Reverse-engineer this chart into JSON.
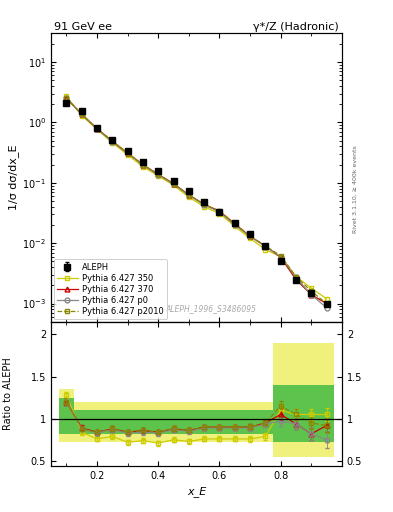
{
  "title_left": "91 GeV ee",
  "title_right": "γ*/Z (Hadronic)",
  "ylabel_main": "1/σ dσ/dx_E",
  "ylabel_ratio": "Ratio to ALEPH",
  "xlabel": "x_E",
  "watermark": "ALEPH_1996_S3486095",
  "right_label": "Rivet 3.1.10, ≥ 400k events",
  "xE": [
    0.1,
    0.15,
    0.2,
    0.25,
    0.3,
    0.35,
    0.4,
    0.45,
    0.5,
    0.55,
    0.6,
    0.65,
    0.7,
    0.75,
    0.8,
    0.85,
    0.9,
    0.95
  ],
  "aleph_y": [
    2.1,
    1.55,
    0.82,
    0.52,
    0.34,
    0.22,
    0.155,
    0.108,
    0.072,
    0.048,
    0.033,
    0.022,
    0.014,
    0.009,
    0.005,
    0.0025,
    0.0015,
    0.001
  ],
  "aleph_yerr": [
    0.06,
    0.04,
    0.02,
    0.012,
    0.008,
    0.005,
    0.004,
    0.003,
    0.002,
    0.0015,
    0.001,
    0.0008,
    0.0005,
    0.0003,
    0.0002,
    0.0001,
    8e-05,
    5e-05
  ],
  "py350_y": [
    2.7,
    1.3,
    0.77,
    0.46,
    0.29,
    0.185,
    0.13,
    0.091,
    0.058,
    0.04,
    0.031,
    0.019,
    0.012,
    0.0078,
    0.006,
    0.0028,
    0.0018,
    0.0012
  ],
  "py370_y": [
    2.52,
    1.37,
    0.79,
    0.49,
    0.31,
    0.2,
    0.138,
    0.097,
    0.063,
    0.044,
    0.034,
    0.021,
    0.013,
    0.009,
    0.0058,
    0.0025,
    0.0014,
    0.001
  ],
  "pyp0_y": [
    2.52,
    1.36,
    0.78,
    0.48,
    0.31,
    0.196,
    0.136,
    0.095,
    0.062,
    0.043,
    0.033,
    0.02,
    0.013,
    0.0087,
    0.006,
    0.0027,
    0.0014,
    0.00085
  ],
  "pyp2010_y": [
    2.52,
    1.37,
    0.79,
    0.49,
    0.31,
    0.2,
    0.138,
    0.097,
    0.063,
    0.044,
    0.034,
    0.021,
    0.013,
    0.009,
    0.0062,
    0.0028,
    0.0016,
    0.001
  ],
  "ratio_350": [
    1.28,
    0.84,
    0.76,
    0.79,
    0.72,
    0.74,
    0.71,
    0.75,
    0.73,
    0.76,
    0.76,
    0.76,
    0.76,
    0.79,
    1.1,
    1.05,
    1.05,
    1.05
  ],
  "ratio_370": [
    1.2,
    0.89,
    0.84,
    0.88,
    0.84,
    0.86,
    0.84,
    0.88,
    0.86,
    0.9,
    0.9,
    0.9,
    0.9,
    0.95,
    1.05,
    0.94,
    0.82,
    0.92
  ],
  "ratio_p0": [
    1.2,
    0.88,
    0.83,
    0.87,
    0.83,
    0.84,
    0.83,
    0.87,
    0.85,
    0.89,
    0.89,
    0.89,
    0.89,
    0.94,
    0.97,
    0.94,
    0.82,
    0.75
  ],
  "ratio_p2010": [
    1.2,
    0.88,
    0.84,
    0.88,
    0.84,
    0.86,
    0.84,
    0.88,
    0.86,
    0.9,
    0.9,
    0.9,
    0.9,
    0.95,
    1.15,
    1.05,
    0.95,
    0.92
  ],
  "ratio_350_err": [
    0.04,
    0.03,
    0.03,
    0.03,
    0.03,
    0.03,
    0.03,
    0.03,
    0.03,
    0.03,
    0.03,
    0.03,
    0.04,
    0.04,
    0.06,
    0.06,
    0.07,
    0.08
  ],
  "ratio_370_err": [
    0.04,
    0.03,
    0.03,
    0.03,
    0.03,
    0.03,
    0.03,
    0.03,
    0.03,
    0.03,
    0.03,
    0.03,
    0.04,
    0.04,
    0.06,
    0.06,
    0.07,
    0.08
  ],
  "ratio_p0_err": [
    0.04,
    0.03,
    0.03,
    0.03,
    0.03,
    0.03,
    0.03,
    0.03,
    0.03,
    0.03,
    0.03,
    0.03,
    0.04,
    0.04,
    0.06,
    0.06,
    0.07,
    0.1
  ],
  "ratio_p2010_err": [
    0.04,
    0.03,
    0.03,
    0.03,
    0.03,
    0.03,
    0.03,
    0.03,
    0.03,
    0.03,
    0.03,
    0.03,
    0.04,
    0.04,
    0.06,
    0.06,
    0.07,
    0.08
  ],
  "band_350_lo": [
    0.72,
    0.72,
    0.72,
    0.72,
    0.72,
    0.72,
    0.72,
    0.72,
    0.72,
    0.72,
    0.72,
    0.72,
    0.72,
    0.72,
    0.55,
    0.55,
    0.55,
    0.55
  ],
  "band_350_hi": [
    1.35,
    1.2,
    1.2,
    1.2,
    1.2,
    1.2,
    1.2,
    1.2,
    1.2,
    1.2,
    1.2,
    1.2,
    1.2,
    1.2,
    1.9,
    1.9,
    1.9,
    1.9
  ],
  "band_p0_lo": [
    0.82,
    0.82,
    0.82,
    0.82,
    0.82,
    0.82,
    0.82,
    0.82,
    0.82,
    0.82,
    0.82,
    0.82,
    0.82,
    0.82,
    0.72,
    0.72,
    0.72,
    0.72
  ],
  "band_p0_hi": [
    1.25,
    1.1,
    1.1,
    1.1,
    1.1,
    1.1,
    1.1,
    1.1,
    1.1,
    1.1,
    1.1,
    1.1,
    1.1,
    1.1,
    1.4,
    1.4,
    1.4,
    1.4
  ],
  "color_350": "#cccc00",
  "color_370": "#cc0000",
  "color_p0": "#888888",
  "color_p2010": "#888800",
  "color_aleph": "#000000",
  "band_350_color": "#eeee66",
  "band_p0_color": "#44bb44",
  "xlim": [
    0.05,
    1.0
  ],
  "ylim_main": [
    0.0005,
    30
  ],
  "ylim_ratio": [
    0.44,
    2.15
  ],
  "ratio_yticks": [
    0.5,
    1.0,
    1.5,
    2.0
  ],
  "ratio_yticklabels": [
    "0.5",
    "1",
    "1.5",
    "2"
  ]
}
